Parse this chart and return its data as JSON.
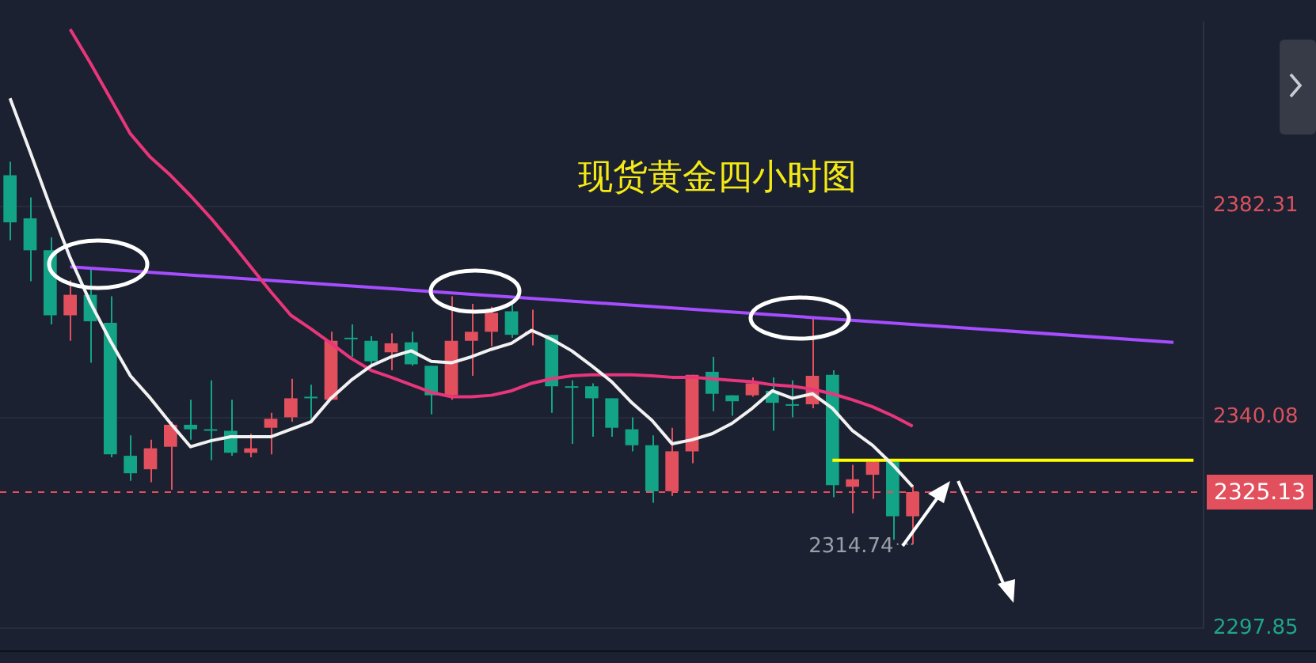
{
  "chart_data": {
    "type": "candlestick",
    "title": "现货黄金四小时图",
    "categories": [
      null,
      null,
      null,
      null,
      null,
      null,
      null,
      null,
      null,
      null,
      null,
      null,
      null,
      null,
      null,
      null,
      null,
      null,
      null,
      null,
      null,
      null,
      null,
      null,
      null,
      null,
      null,
      null,
      null,
      null,
      null,
      null,
      null,
      null,
      null,
      null,
      null,
      null,
      null,
      null,
      null,
      null,
      null,
      null,
      null,
      null,
      null,
      null,
      null,
      null,
      null,
      null,
      null,
      null,
      null,
      null,
      null,
      null,
      null,
      null
    ],
    "ohlc": [
      [
        2388.5,
        2391.2,
        2375.5,
        2379.1
      ],
      [
        2379.9,
        2384.1,
        2367.3,
        2373.5
      ],
      [
        2373.5,
        2376.1,
        2358.7,
        2360.5
      ],
      [
        2360.5,
        2367.5,
        2355.4,
        2364.6
      ],
      [
        2364.6,
        2370.0,
        2351.0,
        2359.3
      ],
      [
        2359.0,
        2364.3,
        2332.1,
        2332.7
      ],
      [
        2332.4,
        2336.5,
        2327.4,
        2328.9
      ],
      [
        2329.7,
        2335.6,
        2327.1,
        2333.9
      ],
      [
        2334.2,
        2339.2,
        2325.6,
        2338.6
      ],
      [
        2338.6,
        2343.6,
        2335.6,
        2337.7
      ],
      [
        2337.5,
        2347.5,
        2331.5,
        2337.4
      ],
      [
        2337.4,
        2343.6,
        2332.4,
        2333.0
      ],
      [
        2333.0,
        2336.8,
        2332.1,
        2333.9
      ],
      [
        2338.0,
        2341.0,
        2332.7,
        2339.8
      ],
      [
        2340.1,
        2347.8,
        2339.2,
        2343.9
      ],
      [
        2344.0,
        2346.6,
        2339.8,
        2343.9
      ],
      [
        2343.6,
        2357.2,
        2343.6,
        2355.4
      ],
      [
        2355.8,
        2358.7,
        2352.2,
        2355.7
      ],
      [
        2355.4,
        2356.3,
        2350.7,
        2351.3
      ],
      [
        2353.1,
        2356.9,
        2349.5,
        2354.9
      ],
      [
        2355.1,
        2357.2,
        2350.4,
        2350.7
      ],
      [
        2350.4,
        2350.4,
        2340.7,
        2344.5
      ],
      [
        2344.5,
        2364.3,
        2343.6,
        2355.4
      ],
      [
        2355.4,
        2362.8,
        2348.4,
        2357.2
      ],
      [
        2357.2,
        2362.2,
        2354.3,
        2361.0
      ],
      [
        2361.3,
        2362.8,
        2356.0,
        2356.6
      ],
      [
        2356.9,
        2361.6,
        2354.5,
        2357.2
      ],
      [
        2356.6,
        2356.6,
        2341.0,
        2346.3
      ],
      [
        2346.3,
        2347.5,
        2334.8,
        2346.0
      ],
      [
        2346.3,
        2346.9,
        2336.2,
        2343.9
      ],
      [
        2343.9,
        2343.9,
        2336.2,
        2338.0
      ],
      [
        2337.7,
        2340.1,
        2333.3,
        2334.5
      ],
      [
        2334.5,
        2336.5,
        2323.0,
        2325.3
      ],
      [
        2325.3,
        2338.0,
        2324.4,
        2333.3
      ],
      [
        2333.3,
        2348.6,
        2330.9,
        2348.6
      ],
      [
        2349.2,
        2352.2,
        2341.3,
        2344.8
      ],
      [
        2344.5,
        2344.5,
        2340.4,
        2343.3
      ],
      [
        2344.5,
        2348.1,
        2344.2,
        2346.9
      ],
      [
        2345.4,
        2348.1,
        2337.4,
        2343.0
      ],
      [
        2342.5,
        2347.5,
        2340.1,
        2342.4
      ],
      [
        2342.7,
        2360.2,
        2341.9,
        2348.4
      ],
      [
        2348.6,
        2349.5,
        2324.1,
        2326.5
      ],
      [
        2326.2,
        2330.6,
        2320.9,
        2327.7
      ],
      [
        2328.6,
        2331.5,
        2323.8,
        2331.2
      ],
      [
        2331.2,
        2331.2,
        2315.6,
        2320.3
      ],
      [
        2320.3,
        2326.5,
        2314.74,
        2325.13
      ],
      null,
      null,
      null,
      null,
      null,
      null,
      null,
      null,
      null,
      null,
      null,
      null,
      null,
      null
    ],
    "colors": [
      "#13a386",
      "#13a386",
      "#13a386",
      "#e2505d",
      "#13a386",
      "#13a386",
      "#13a386",
      "#e2505d",
      "#e2505d",
      "#13a386",
      "#13a386",
      "#13a386",
      "#e2505d",
      "#e2505d",
      "#e2505d",
      "#13a386",
      "#e2505d",
      "#13a386",
      "#13a386",
      "#e2505d",
      "#13a386",
      "#13a386",
      "#e2505d",
      "#e2505d",
      "#e2505d",
      "#13a386",
      "#e2505d",
      "#13a386",
      "#13a386",
      "#13a386",
      "#13a386",
      "#13a386",
      "#13a386",
      "#e2505d",
      "#e2505d",
      "#13a386",
      "#13a386",
      "#e2505d",
      "#13a386",
      "#13a386",
      "#e2505d",
      "#13a386",
      "#e2505d",
      "#e2505d",
      "#13a386",
      "#e2505d",
      null,
      null,
      null,
      null,
      null,
      null,
      null,
      null,
      null,
      null,
      null,
      null,
      null,
      null
    ],
    "series": [
      {
        "type": "line",
        "color": "#f2f2f2",
        "values": [
          2403.9,
          2393.2,
          2382.3,
          2372.0,
          2363.1,
          2355.4,
          2348.4,
          2343.9,
          2338.9,
          2334.2,
          2335.4,
          2336.2,
          2336.2,
          2336.2,
          2337.7,
          2339.2,
          2343.9,
          2347.5,
          2350.4,
          2352.2,
          2353.4,
          2351.3,
          2351.0,
          2352.2,
          2353.7,
          2354.9,
          2357.5,
          2355.7,
          2353.4,
          2350.4,
          2347.2,
          2343.0,
          2339.5,
          2334.8,
          2335.6,
          2336.8,
          2338.9,
          2341.9,
          2345.4,
          2343.9,
          2344.8,
          2341.9,
          2337.4,
          2334.5,
          2330.6,
          2326.2,
          null,
          null,
          null,
          null,
          null,
          null,
          null,
          null,
          null,
          null,
          null,
          null,
          null,
          null
        ]
      },
      {
        "type": "line",
        "color": "#e8357c",
        "values": [
          null,
          null,
          null,
          2417.7,
          2411.0,
          2403.9,
          2396.8,
          2392.1,
          2388.5,
          2384.4,
          2380.0,
          2375.2,
          2370.2,
          2365.2,
          2360.5,
          2357.8,
          2354.9,
          2351.9,
          2349.5,
          2348.1,
          2346.6,
          2345.1,
          2344.2,
          2344.2,
          2344.5,
          2345.4,
          2346.9,
          2347.8,
          2348.4,
          2348.6,
          2348.6,
          2348.6,
          2348.4,
          2348.1,
          2348.1,
          2347.8,
          2347.5,
          2347.2,
          2346.6,
          2346.3,
          2345.7,
          2344.8,
          2343.6,
          2342.2,
          2340.4,
          2338.3,
          null,
          null,
          null,
          null,
          null,
          null,
          null,
          null,
          null,
          null,
          null,
          null,
          null,
          null
        ]
      },
      {
        "type": "line",
        "color": "#a64dff",
        "values": [
          null,
          null,
          null,
          2370.2,
          null,
          null,
          null,
          null,
          null,
          null,
          null,
          null,
          null,
          null,
          null,
          null,
          null,
          null,
          null,
          null,
          null,
          null,
          null,
          null,
          null,
          null,
          null,
          null,
          null,
          null,
          null,
          null,
          null,
          null,
          null,
          null,
          null,
          null,
          null,
          null,
          null,
          null,
          null,
          null,
          null,
          null,
          null,
          null,
          null,
          null,
          null,
          null,
          null,
          null,
          null,
          null,
          null,
          null,
          2355.1,
          null
        ]
      },
      {
        "type": "line",
        "color": "#ffff00",
        "values": [
          null,
          null,
          null,
          null,
          null,
          null,
          null,
          null,
          null,
          null,
          null,
          null,
          null,
          null,
          null,
          null,
          null,
          null,
          null,
          null,
          null,
          null,
          null,
          null,
          null,
          null,
          null,
          null,
          null,
          null,
          null,
          null,
          null,
          null,
          null,
          null,
          null,
          null,
          null,
          null,
          null,
          2331.5,
          null,
          null,
          null,
          null,
          null,
          null,
          null,
          null,
          null,
          null,
          null,
          null,
          null,
          null,
          null,
          null,
          null,
          2331.5
        ]
      }
    ],
    "ylim": [
      2297.85,
      2419.2
    ],
    "yticks": [
      2297.85,
      2340.08,
      2382.31
    ],
    "grid": "y",
    "marker": "none",
    "tick_labels": "y",
    "ref_lines": [
      {
        "axis": "y",
        "value": 2325.13,
        "label": "2325.13",
        "color": "#e2505d",
        "line_style": "dashed"
      }
    ],
    "annotations": [
      "2314.74"
    ]
  }
}
